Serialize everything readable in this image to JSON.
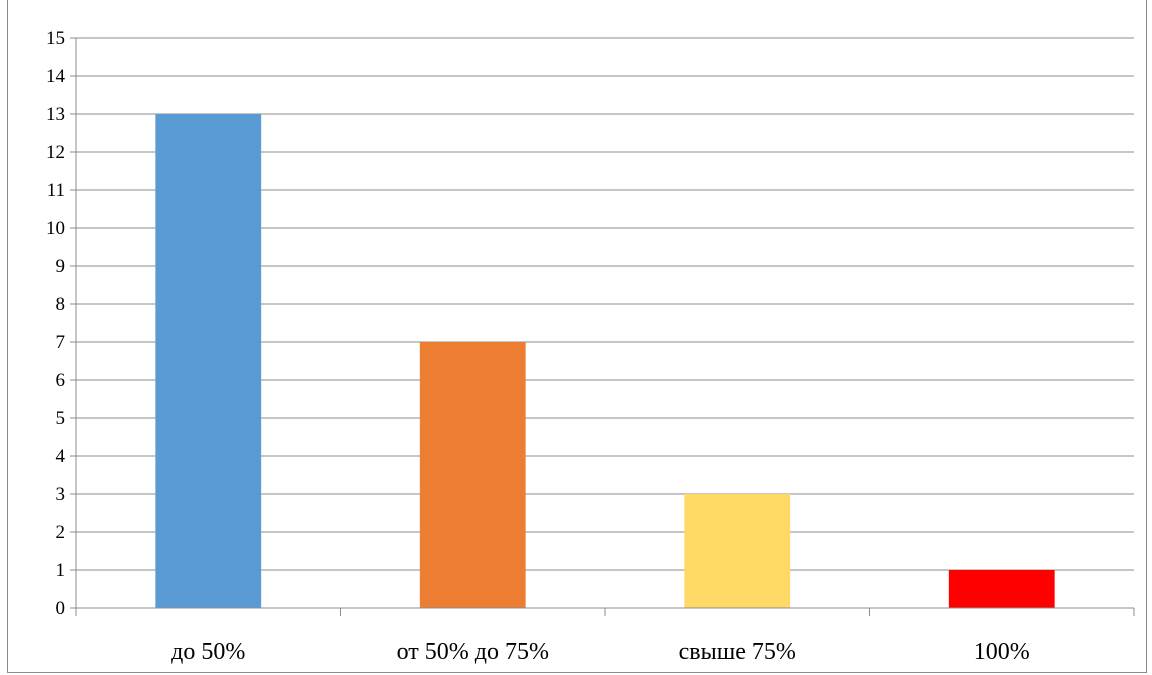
{
  "chart_data": {
    "type": "bar",
    "title": "",
    "xlabel": "",
    "ylabel": "",
    "categories": [
      "до 50%",
      "от 50% до 75%",
      "свыше 75%",
      "100%"
    ],
    "values": [
      13,
      7,
      3,
      1
    ],
    "bar_colors": [
      "#5b9bd5",
      "#ed7d31",
      "#ffd966",
      "#ff0000"
    ],
    "ylim": [
      0,
      15
    ],
    "y_ticks": [
      "0",
      "1",
      "2",
      "3",
      "4",
      "5",
      "6",
      "7",
      "8",
      "9",
      "10",
      "11",
      "12",
      "13",
      "14",
      "15"
    ],
    "grid": true,
    "legend": "none"
  }
}
